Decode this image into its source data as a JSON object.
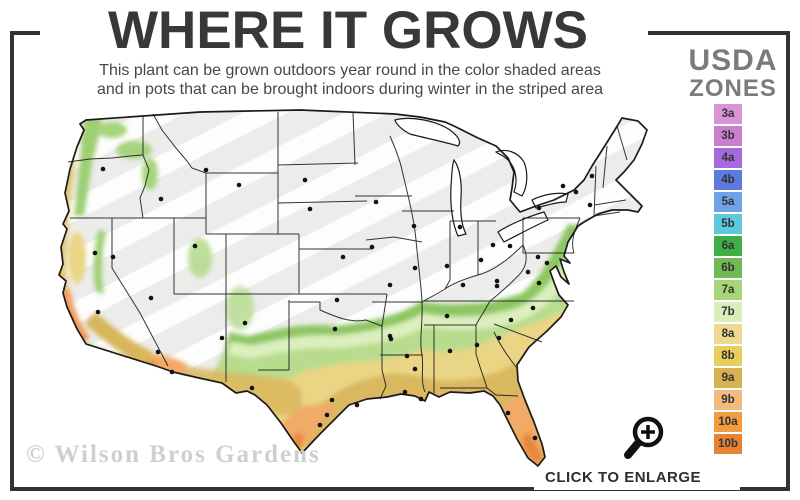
{
  "header": {
    "title": "WHERE IT GROWS",
    "subtitle_line1": "This plant can be grown outdoors year round in the color shaded areas",
    "subtitle_line2": "and in pots that can be brought indoors during winter in the striped area"
  },
  "legend": {
    "title_line1": "USDA",
    "title_line2": "ZONES",
    "zones": [
      {
        "label": "3a",
        "color": "#db92d6"
      },
      {
        "label": "3b",
        "color": "#c97fce"
      },
      {
        "label": "4a",
        "color": "#a46adc"
      },
      {
        "label": "4b",
        "color": "#5c7bdc"
      },
      {
        "label": "5a",
        "color": "#6fa3e8"
      },
      {
        "label": "5b",
        "color": "#5fc8dd"
      },
      {
        "label": "6a",
        "color": "#3eae47"
      },
      {
        "label": "6b",
        "color": "#72b854"
      },
      {
        "label": "7a",
        "color": "#a7d678"
      },
      {
        "label": "7b",
        "color": "#d9eebb"
      },
      {
        "label": "8a",
        "color": "#ecd88f"
      },
      {
        "label": "8b",
        "color": "#e7ce5d"
      },
      {
        "label": "9a",
        "color": "#d7b152"
      },
      {
        "label": "9b",
        "color": "#f3ba80"
      },
      {
        "label": "10a",
        "color": "#f29c3f"
      },
      {
        "label": "10b",
        "color": "#e68230"
      }
    ]
  },
  "map": {
    "colors": {
      "base_gray": "#ececea",
      "stripe_white": "#ffffff",
      "border_line": "#1a1a1a",
      "state_line": "#1f1f1f",
      "dot": "#111111",
      "medium_green": "#8cc661",
      "light_green": "#b7dc8e",
      "pale_green": "#dcefbd",
      "yellow": "#e9d584",
      "gold": "#d8b65c",
      "peach": "#f2aa68",
      "orange": "#e8873c",
      "coast_yellow": "#e2c56a",
      "coast_orange": "#efa05f",
      "nw_green": "#9ecf74",
      "lake_white": "#ffffff"
    }
  },
  "footer": {
    "watermark": "© Wilson Bros Gardens",
    "enlarge_label": "CLICK TO ENLARGE",
    "enlarge_icon": "magnifier-plus-icon"
  }
}
